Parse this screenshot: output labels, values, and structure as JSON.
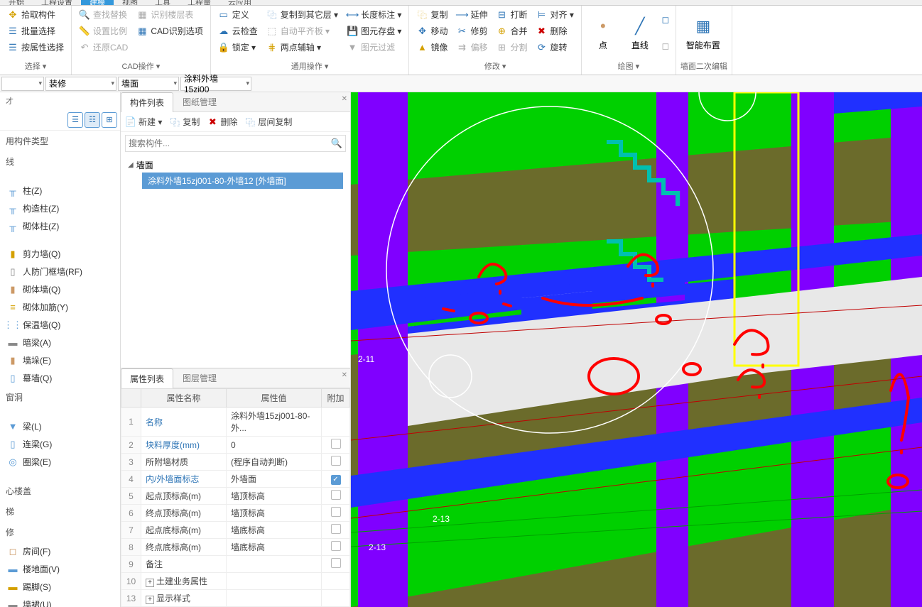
{
  "ribbon_tabs": [
    "开始",
    "工程设置",
    "建模",
    "视图",
    "工具",
    "工程量",
    "云应用"
  ],
  "ribbon_active_tab": 2,
  "ribbon": {
    "select": {
      "items": [
        "拾取构件",
        "批量选择",
        "按属性选择"
      ],
      "label": "选择 ▾"
    },
    "cad": {
      "items": [
        "查找替换",
        "设置比例",
        "还原CAD",
        "识别楼层表",
        "CAD识别选项"
      ],
      "label": "CAD操作 ▾"
    },
    "general": {
      "items": [
        "定义",
        "云检查",
        "锁定 ▾",
        "复制到其它层 ▾",
        "自动平齐板 ▾",
        "两点辅轴 ▾",
        "长度标注 ▾",
        "图元存盘 ▾",
        "图元过滤"
      ],
      "label": "通用操作 ▾"
    },
    "modify": {
      "items": [
        "复制",
        "移动",
        "镜像",
        "延伸",
        "修剪",
        "偏移",
        "打断",
        "合并",
        "分割",
        "对齐 ▾",
        "删除",
        "旋转"
      ],
      "label": "修改 ▾"
    },
    "draw": {
      "items": [
        "点",
        "直线"
      ],
      "label": "绘图 ▾"
    },
    "smart": {
      "label1": "智能布置",
      "label": "墙面二次编辑"
    }
  },
  "dropdowns": {
    "d1": "",
    "d2": "装修",
    "d3": "墙面",
    "d4": "涂料外墙15zj00"
  },
  "left": {
    "section1": "用构件类型",
    "section_x": "线",
    "items1": [
      "柱(Z)",
      "构造柱(Z)",
      "砌体柱(Z)"
    ],
    "items2": [
      "剪力墙(Q)",
      "人防门框墙(RF)",
      "砌体墙(Q)",
      "砌体加筋(Y)",
      "保温墙(Q)",
      "暗梁(A)",
      "墙垛(E)",
      "幕墙(Q)"
    ],
    "section2": "窗洞",
    "items3": [
      "梁(L)",
      "连梁(G)",
      "圈梁(E)"
    ],
    "section3": "心楼盖",
    "section4": "梯",
    "section5": "修",
    "items4": [
      "房间(F)",
      "楼地面(V)",
      "踢脚(S)",
      "墙裙(U)"
    ]
  },
  "component_panel": {
    "tabs": [
      "构件列表",
      "图纸管理"
    ],
    "toolbar": [
      "新建 ▾",
      "复制",
      "删除",
      "层间复制"
    ],
    "search_placeholder": "搜索构件...",
    "tree_root": "墙面",
    "tree_child": "涂料外墙15zj001-80-外墙12 [外墙面]"
  },
  "prop_panel": {
    "tabs": [
      "属性列表",
      "图层管理"
    ],
    "headers": [
      "",
      "属性名称",
      "属性值",
      "附加"
    ],
    "rows": [
      {
        "n": "1",
        "name": "名称",
        "val": "涂料外墙15zj001-80-外...",
        "link": true,
        "chk": null
      },
      {
        "n": "2",
        "name": "块料厚度(mm)",
        "val": "0",
        "link": true,
        "chk": false
      },
      {
        "n": "3",
        "name": "所附墙材质",
        "val": "(程序自动判断)",
        "link": false,
        "chk": false
      },
      {
        "n": "4",
        "name": "内/外墙面标志",
        "val": "外墙面",
        "link": true,
        "chk": true
      },
      {
        "n": "5",
        "name": "起点顶标高(m)",
        "val": "墙顶标高",
        "link": false,
        "chk": false
      },
      {
        "n": "6",
        "name": "终点顶标高(m)",
        "val": "墙顶标高",
        "link": false,
        "chk": false
      },
      {
        "n": "7",
        "name": "起点底标高(m)",
        "val": "墙底标高",
        "link": false,
        "chk": false
      },
      {
        "n": "8",
        "name": "终点底标高(m)",
        "val": "墙底标高",
        "link": false,
        "chk": false
      },
      {
        "n": "9",
        "name": "备注",
        "val": "",
        "link": false,
        "chk": false
      },
      {
        "n": "10",
        "name": "土建业务属性",
        "val": "",
        "link": false,
        "chk": null,
        "expand": true
      },
      {
        "n": "13",
        "name": "显示样式",
        "val": "",
        "link": false,
        "chk": null,
        "expand": true
      }
    ]
  },
  "viewport": {
    "colors": {
      "green": "#00d000",
      "purple": "#8000ff",
      "blue": "#2030ff",
      "white": "#e8e8e8",
      "teal": "#00c0b0",
      "olive": "#6b6b2b",
      "yellow": "#ffff00",
      "red": "#ff0000",
      "darkred": "#c00000",
      "grid": "#606060"
    },
    "labels": {
      "l1": "2-11",
      "l2": "2-13",
      "l3": "2-13"
    }
  }
}
